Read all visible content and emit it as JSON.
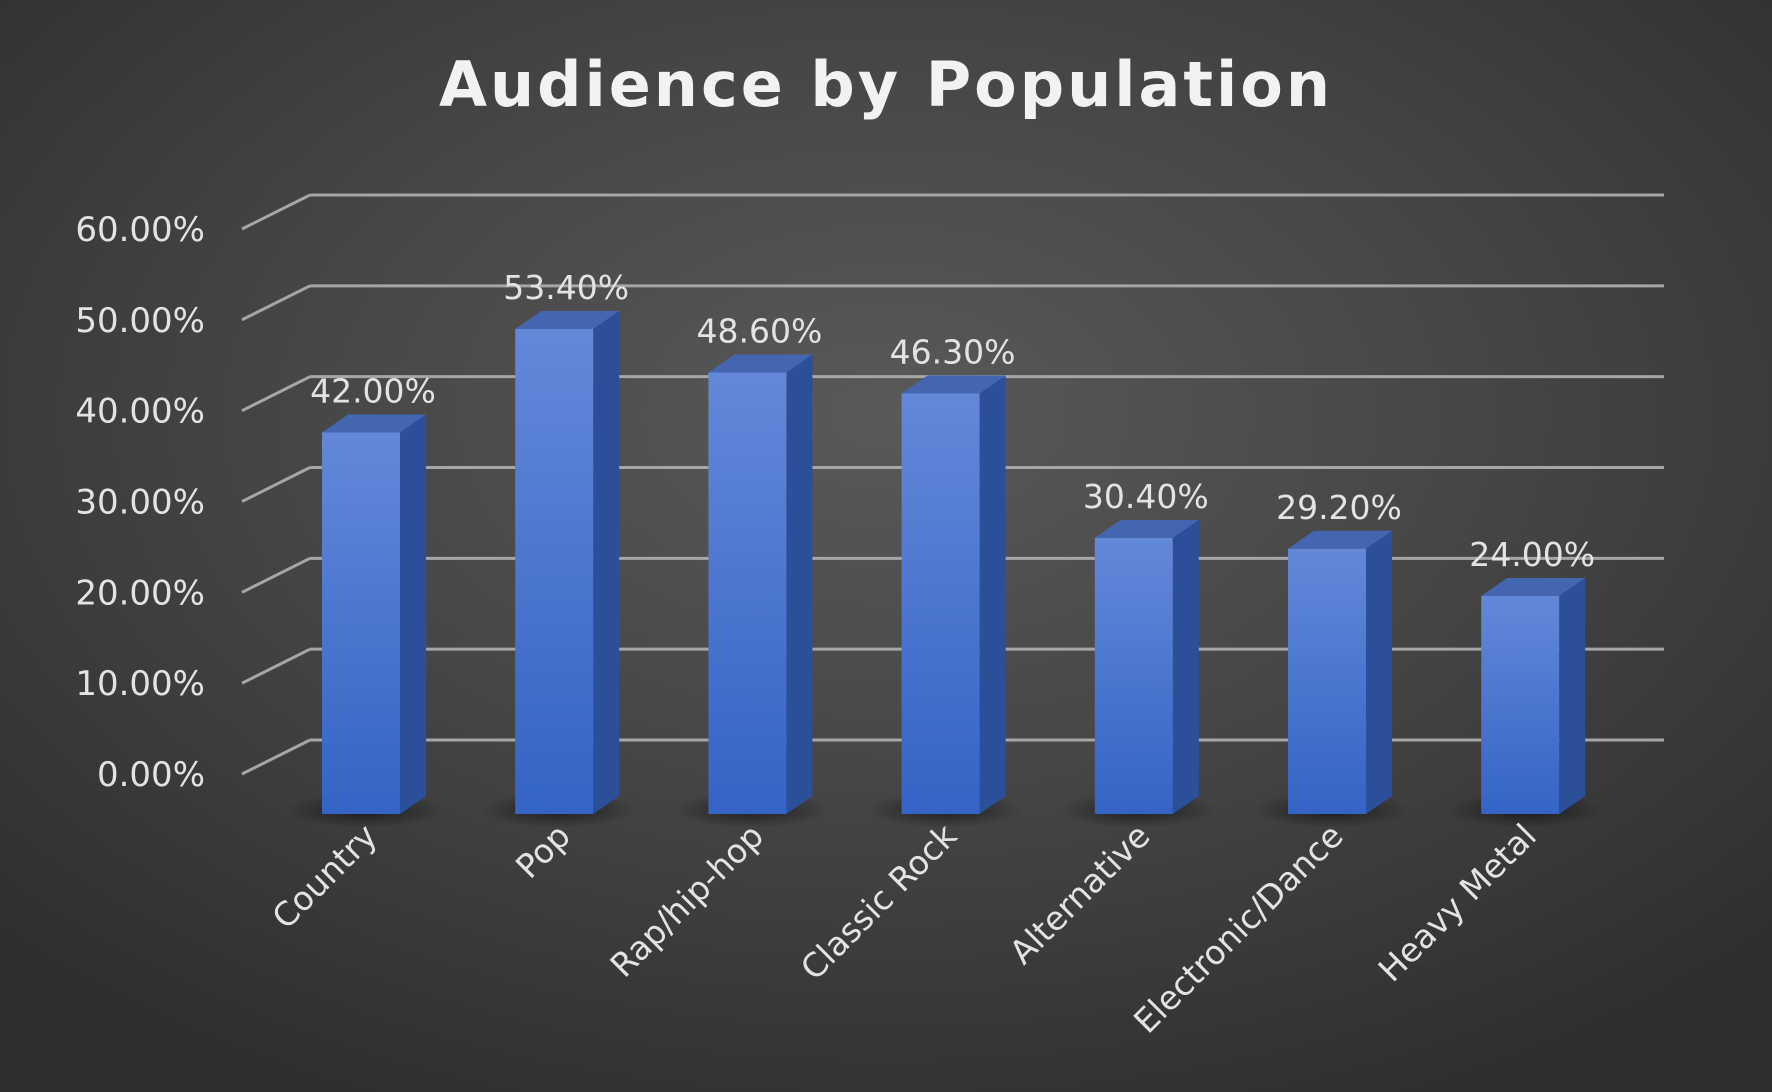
{
  "chart_data": {
    "type": "bar",
    "title": "Audience by Population",
    "xlabel": "",
    "ylabel": "",
    "categories": [
      "Country",
      "Pop",
      "Rap/hip-hop",
      "Classic Rock",
      "Alternative",
      "Electronic/Dance",
      "Heavy Metal"
    ],
    "values": [
      42.0,
      53.4,
      48.6,
      46.3,
      30.4,
      29.2,
      24.0
    ],
    "data_labels": [
      "42.00%",
      "53.40%",
      "48.60%",
      "46.30%",
      "30.40%",
      "29.20%",
      "24.00%"
    ],
    "y_ticks": [
      0,
      10,
      20,
      30,
      40,
      50,
      60
    ],
    "y_tick_labels": [
      "0.00%",
      "10.00%",
      "20.00%",
      "30.00%",
      "40.00%",
      "50.00%",
      "60.00%"
    ],
    "ylim": [
      0,
      60
    ],
    "grid": true,
    "legend": "none",
    "style": "3d-column",
    "colors": {
      "bar_front_top": "#6388d8",
      "bar_front_bottom": "#3464c6",
      "bar_side": "#2c4f9a",
      "bar_top": "#4466b0",
      "grid": "#a6a6a6",
      "text": "#e3e3e3",
      "title": "#f2f2f2"
    }
  }
}
